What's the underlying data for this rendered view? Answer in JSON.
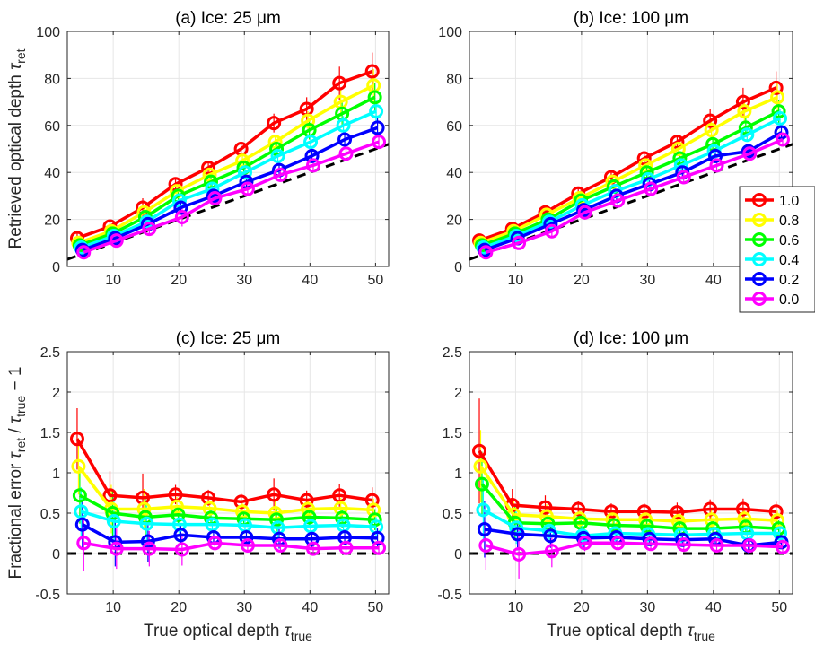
{
  "chart_data": [
    {
      "type": "line",
      "panel": "a",
      "title": "(a) Ice: 25 μm",
      "ylabel_main": "Retrieved optical depth τ",
      "ylabel_sub": "ret",
      "xlabel_main": "",
      "xlabel_sub": "",
      "xlim": [
        3,
        52
      ],
      "ylim": [
        0,
        100
      ],
      "xticks": [
        10,
        20,
        30,
        40,
        50
      ],
      "yticks": [
        0,
        20,
        40,
        60,
        80,
        100
      ],
      "grid": true,
      "reference_line": {
        "x": [
          3,
          52
        ],
        "y": [
          3,
          52
        ],
        "style": "dashed",
        "color": "#000000"
      },
      "x": [
        5,
        10,
        15,
        20,
        25,
        30,
        35,
        40,
        45,
        50
      ],
      "series": [
        {
          "name": "1.0",
          "color": "#ff0000",
          "offset": -0.5,
          "values": [
            12,
            17,
            25,
            35,
            42,
            50,
            61,
            67,
            78,
            83
          ],
          "err": [
            2,
            2,
            4,
            2,
            2,
            2,
            4,
            5,
            7,
            8
          ]
        },
        {
          "name": "0.8",
          "color": "#ffff00",
          "offset": -0.3,
          "values": [
            10,
            15,
            23,
            32,
            39,
            45,
            53,
            62,
            70,
            77
          ],
          "err": [
            2,
            2,
            3,
            2,
            2,
            2,
            3,
            4,
            6,
            7
          ]
        },
        {
          "name": "0.6",
          "color": "#00ff00",
          "offset": -0.1,
          "values": [
            9,
            14,
            21,
            30,
            36,
            42,
            50,
            58,
            65,
            72
          ],
          "err": [
            2,
            2,
            3,
            2,
            2,
            2,
            3,
            4,
            5,
            6
          ]
        },
        {
          "name": "0.4",
          "color": "#00ffff",
          "offset": 0.1,
          "values": [
            8,
            13,
            19,
            28,
            33,
            40,
            47,
            53,
            60,
            66
          ],
          "err": [
            2,
            2,
            2,
            2,
            2,
            2,
            3,
            3,
            4,
            5
          ]
        },
        {
          "name": "0.2",
          "color": "#0000ff",
          "offset": 0.3,
          "values": [
            7,
            12,
            18,
            25,
            30,
            36,
            41,
            47,
            54,
            59
          ],
          "err": [
            1,
            1,
            2,
            2,
            2,
            2,
            2,
            3,
            3,
            4
          ]
        },
        {
          "name": "0.0",
          "color": "#ff00ff",
          "offset": 0.5,
          "values": [
            6,
            11,
            16,
            21,
            29,
            33,
            39,
            43,
            48,
            53
          ],
          "err": [
            1,
            1,
            2,
            4,
            2,
            2,
            2,
            2,
            3,
            3
          ]
        }
      ]
    },
    {
      "type": "line",
      "panel": "b",
      "title": "(b) Ice: 100 μm",
      "ylabel_main": "",
      "ylabel_sub": "",
      "xlabel_main": "",
      "xlabel_sub": "",
      "xlim": [
        3,
        52
      ],
      "ylim": [
        0,
        100
      ],
      "xticks": [
        10,
        20,
        30,
        40,
        50
      ],
      "yticks": [
        0,
        20,
        40,
        60,
        80,
        100
      ],
      "grid": true,
      "reference_line": {
        "x": [
          3,
          52
        ],
        "y": [
          3,
          52
        ],
        "style": "dashed",
        "color": "#000000"
      },
      "x": [
        5,
        10,
        15,
        20,
        25,
        30,
        35,
        40,
        45,
        50
      ],
      "series": [
        {
          "name": "1.0",
          "color": "#ff0000",
          "offset": -0.5,
          "values": [
            11,
            16,
            23,
            31,
            38,
            46,
            53,
            62,
            70,
            76
          ],
          "err": [
            2,
            2,
            2,
            2,
            2,
            2,
            3,
            5,
            6,
            7
          ]
        },
        {
          "name": "0.8",
          "color": "#ffff00",
          "offset": -0.3,
          "values": [
            10,
            15,
            22,
            29,
            36,
            43,
            50,
            58,
            66,
            72
          ],
          "err": [
            2,
            2,
            2,
            2,
            2,
            2,
            3,
            4,
            5,
            6
          ]
        },
        {
          "name": "0.6",
          "color": "#00ff00",
          "offset": -0.1,
          "values": [
            9,
            14,
            20,
            28,
            34,
            40,
            46,
            52,
            59,
            66
          ],
          "err": [
            2,
            2,
            2,
            2,
            2,
            2,
            3,
            3,
            4,
            5
          ]
        },
        {
          "name": "0.4",
          "color": "#00ffff",
          "offset": 0.1,
          "values": [
            8,
            13,
            19,
            26,
            32,
            37,
            43,
            49,
            56,
            63
          ],
          "err": [
            1,
            1,
            2,
            2,
            2,
            2,
            2,
            3,
            3,
            4
          ]
        },
        {
          "name": "0.2",
          "color": "#0000ff",
          "offset": 0.3,
          "values": [
            7,
            12,
            18,
            24,
            30,
            35,
            40,
            47,
            49,
            57
          ],
          "err": [
            1,
            1,
            2,
            2,
            2,
            2,
            2,
            3,
            3,
            3
          ]
        },
        {
          "name": "0.0",
          "color": "#ff00ff",
          "offset": 0.5,
          "values": [
            6,
            10,
            15,
            23,
            28,
            33,
            38,
            43,
            48,
            54
          ],
          "err": [
            1,
            1,
            3,
            2,
            2,
            2,
            2,
            2,
            2,
            3
          ]
        }
      ]
    },
    {
      "type": "line",
      "panel": "c",
      "title": "(c) Ice: 25 μm",
      "ylabel_main": "Fractional error τ",
      "ylabel_sub": "ret",
      "ylabel_main2": " / τ",
      "ylabel_sub2": "true",
      "ylabel_tail": " − 1",
      "xlabel_main": "True optical depth τ",
      "xlabel_sub": "true",
      "xlim": [
        3,
        52
      ],
      "ylim": [
        -0.5,
        2.5
      ],
      "xticks": [
        10,
        20,
        30,
        40,
        50
      ],
      "yticks": [
        -0.5,
        0,
        0.5,
        1,
        1.5,
        2,
        2.5
      ],
      "grid": true,
      "reference_line": {
        "x": [
          3,
          52
        ],
        "y": [
          0,
          0
        ],
        "style": "dashed",
        "color": "#000000"
      },
      "x": [
        5,
        10,
        15,
        20,
        25,
        30,
        35,
        40,
        45,
        50
      ],
      "series": [
        {
          "name": "1.0",
          "color": "#ff0000",
          "offset": -0.5,
          "values": [
            1.42,
            0.72,
            0.69,
            0.73,
            0.69,
            0.64,
            0.73,
            0.66,
            0.72,
            0.66
          ],
          "err": [
            0.38,
            0.3,
            0.3,
            0.12,
            0.1,
            0.1,
            0.2,
            0.12,
            0.14,
            0.16
          ]
        },
        {
          "name": "0.8",
          "color": "#ffff00",
          "offset": -0.3,
          "values": [
            1.08,
            0.55,
            0.55,
            0.58,
            0.56,
            0.52,
            0.5,
            0.55,
            0.56,
            0.54
          ],
          "err": [
            0.35,
            0.3,
            0.25,
            0.12,
            0.1,
            0.1,
            0.15,
            0.12,
            0.13,
            0.14
          ]
        },
        {
          "name": "0.6",
          "color": "#00ff00",
          "offset": -0.1,
          "values": [
            0.72,
            0.5,
            0.45,
            0.48,
            0.44,
            0.43,
            0.42,
            0.45,
            0.44,
            0.42
          ],
          "err": [
            0.35,
            0.3,
            0.25,
            0.12,
            0.1,
            0.1,
            0.15,
            0.12,
            0.12,
            0.13
          ]
        },
        {
          "name": "0.4",
          "color": "#00ffff",
          "offset": 0.1,
          "values": [
            0.52,
            0.4,
            0.37,
            0.36,
            0.36,
            0.35,
            0.32,
            0.34,
            0.35,
            0.33
          ],
          "err": [
            0.3,
            0.3,
            0.25,
            0.12,
            0.1,
            0.1,
            0.12,
            0.1,
            0.1,
            0.12
          ]
        },
        {
          "name": "0.2",
          "color": "#0000ff",
          "offset": 0.3,
          "values": [
            0.36,
            0.14,
            0.15,
            0.23,
            0.2,
            0.2,
            0.18,
            0.18,
            0.2,
            0.19
          ],
          "err": [
            0.3,
            0.3,
            0.25,
            0.12,
            0.1,
            0.1,
            0.12,
            0.1,
            0.1,
            0.12
          ]
        },
        {
          "name": "0.0",
          "color": "#ff00ff",
          "offset": 0.5,
          "values": [
            0.13,
            0.06,
            0.06,
            0.05,
            0.13,
            0.1,
            0.1,
            0.06,
            0.07,
            0.07
          ],
          "err": [
            0.35,
            0.25,
            0.22,
            0.2,
            0.08,
            0.08,
            0.08,
            0.07,
            0.08,
            0.08
          ]
        }
      ]
    },
    {
      "type": "line",
      "panel": "d",
      "title": "(d) Ice: 100 μm",
      "ylabel_main": "",
      "ylabel_sub": "",
      "xlabel_main": "True optical depth τ",
      "xlabel_sub": "true",
      "xlim": [
        3,
        52
      ],
      "ylim": [
        -0.5,
        2.5
      ],
      "xticks": [
        10,
        20,
        30,
        40,
        50
      ],
      "yticks": [
        -0.5,
        0,
        0.5,
        1,
        1.5,
        2,
        2.5
      ],
      "grid": true,
      "reference_line": {
        "x": [
          3,
          52
        ],
        "y": [
          0,
          0
        ],
        "style": "dashed",
        "color": "#000000"
      },
      "x": [
        5,
        10,
        15,
        20,
        25,
        30,
        35,
        40,
        45,
        50
      ],
      "series": [
        {
          "name": "1.0",
          "color": "#ff0000",
          "offset": -0.5,
          "values": [
            1.27,
            0.6,
            0.57,
            0.55,
            0.52,
            0.52,
            0.51,
            0.55,
            0.55,
            0.52
          ],
          "err": [
            0.65,
            0.2,
            0.15,
            0.1,
            0.1,
            0.1,
            0.12,
            0.12,
            0.13,
            0.12
          ]
        },
        {
          "name": "0.8",
          "color": "#ffff00",
          "offset": -0.3,
          "values": [
            1.08,
            0.48,
            0.46,
            0.43,
            0.42,
            0.42,
            0.4,
            0.42,
            0.43,
            0.41
          ],
          "err": [
            0.45,
            0.2,
            0.15,
            0.1,
            0.1,
            0.1,
            0.12,
            0.12,
            0.12,
            0.12
          ]
        },
        {
          "name": "0.6",
          "color": "#00ff00",
          "offset": -0.1,
          "values": [
            0.86,
            0.38,
            0.37,
            0.38,
            0.35,
            0.34,
            0.31,
            0.31,
            0.33,
            0.31
          ],
          "err": [
            0.4,
            0.2,
            0.15,
            0.1,
            0.1,
            0.1,
            0.1,
            0.1,
            0.1,
            0.1
          ]
        },
        {
          "name": "0.4",
          "color": "#00ffff",
          "offset": 0.1,
          "values": [
            0.54,
            0.32,
            0.28,
            0.22,
            0.25,
            0.24,
            0.23,
            0.24,
            0.25,
            0.25
          ],
          "err": [
            0.4,
            0.2,
            0.15,
            0.15,
            0.1,
            0.1,
            0.1,
            0.1,
            0.1,
            0.1
          ]
        },
        {
          "name": "0.2",
          "color": "#0000ff",
          "offset": 0.3,
          "values": [
            0.3,
            0.24,
            0.22,
            0.19,
            0.2,
            0.18,
            0.17,
            0.18,
            0.1,
            0.14
          ],
          "err": [
            0.35,
            0.2,
            0.15,
            0.12,
            0.1,
            0.08,
            0.08,
            0.08,
            0.1,
            0.08
          ]
        },
        {
          "name": "0.0",
          "color": "#ff00ff",
          "offset": 0.5,
          "values": [
            0.1,
            -0.01,
            0.03,
            0.13,
            0.13,
            0.12,
            0.11,
            0.1,
            0.1,
            0.08
          ],
          "err": [
            0.3,
            0.3,
            0.2,
            0.1,
            0.08,
            0.08,
            0.08,
            0.08,
            0.08,
            0.08
          ]
        }
      ]
    }
  ],
  "legend": {
    "location": "right of panel (b)",
    "entries": [
      "1.0",
      "0.8",
      "0.6",
      "0.4",
      "0.2",
      "0.0"
    ]
  }
}
